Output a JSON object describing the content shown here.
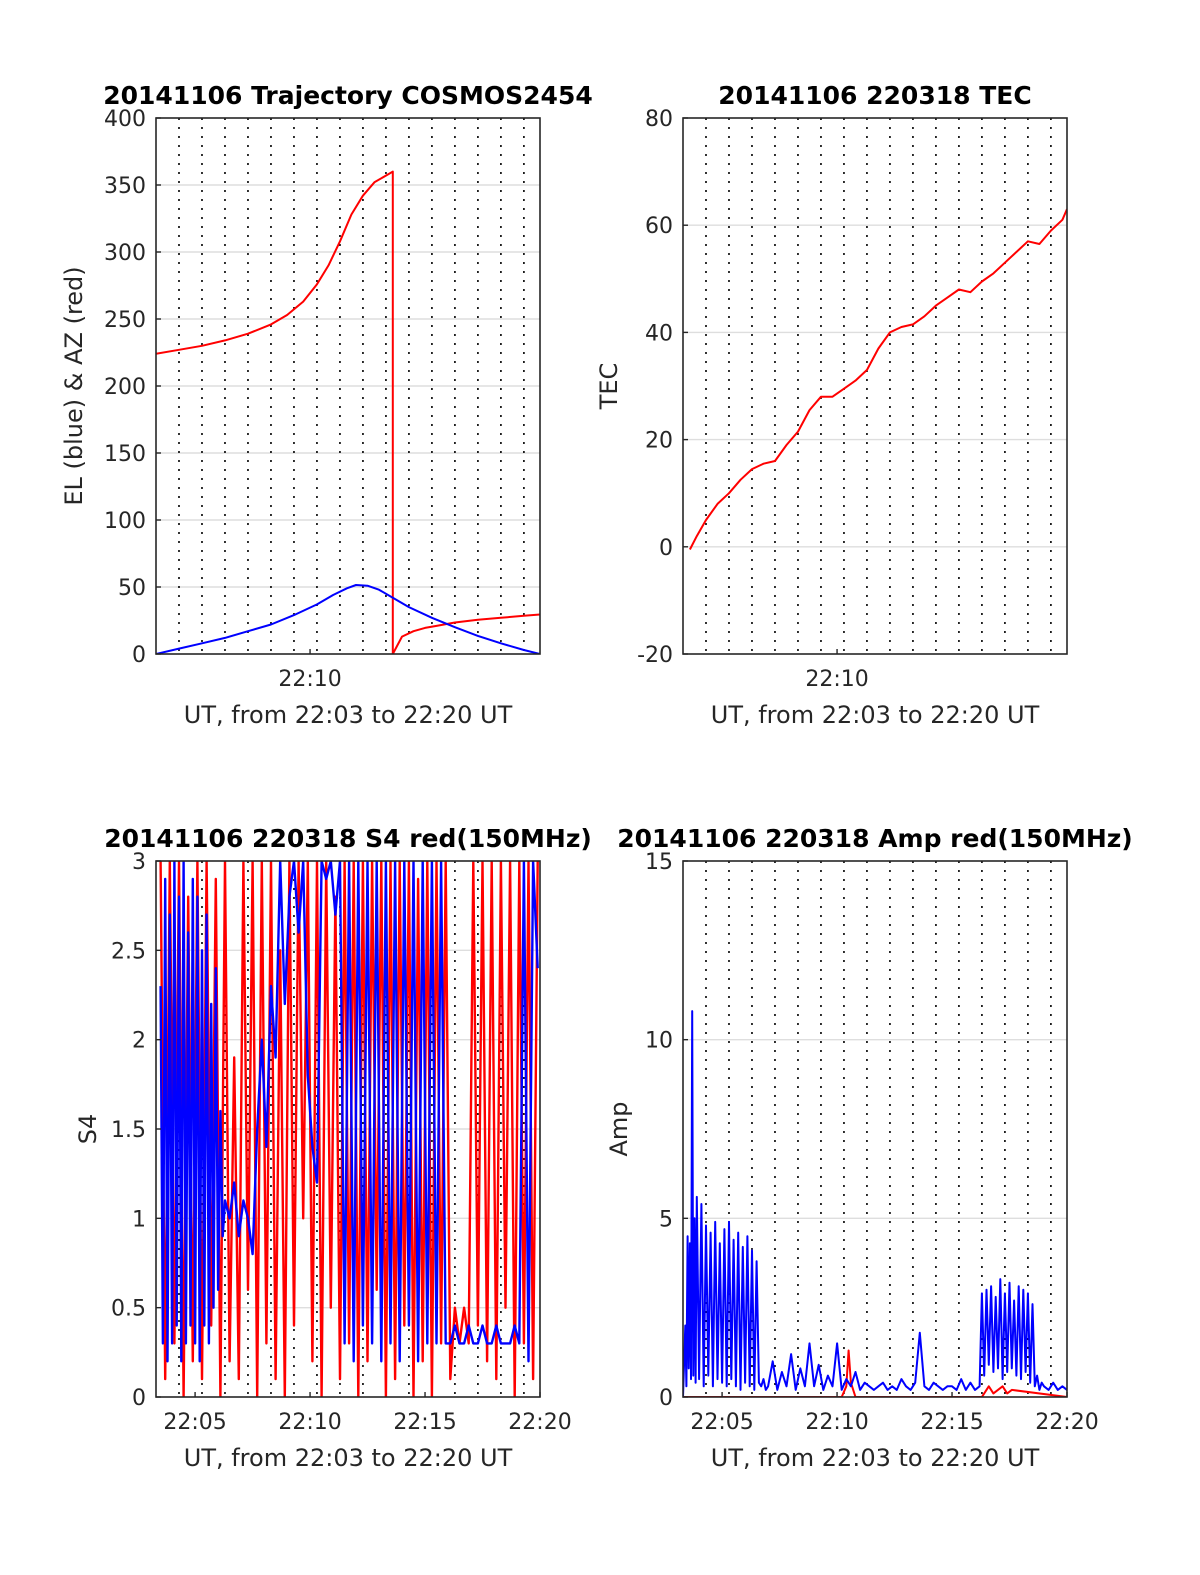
{
  "chart_data": [
    {
      "id": "trajectory",
      "type": "line",
      "title": "20141106 Trajectory COSMOS2454",
      "xlabel": "UT, from 22:03 to 22:20 UT",
      "ylabel": "EL (blue) & AZ (red)",
      "xlim": [
        3.3,
        20.0
      ],
      "ylim": [
        0,
        400
      ],
      "yticks": [
        0,
        50,
        100,
        150,
        200,
        250,
        300,
        350,
        400
      ],
      "xticks": [
        {
          "value": 10,
          "label": "22:10"
        }
      ],
      "vgrid_minutes": [
        3.3,
        4.3,
        5.3,
        6.3,
        7.3,
        8.3,
        9.3,
        10.3,
        11.3,
        12.3,
        13.3,
        14.3,
        15.3,
        16.3,
        17.3,
        18.3,
        19.3,
        20.0
      ],
      "grid": true,
      "series": [
        {
          "color": "#ff0000",
          "x": [
            3.3,
            4.3,
            5.3,
            6.3,
            7.3,
            8.3,
            9.0,
            9.7,
            10.3,
            10.8,
            11.3,
            11.8,
            12.3,
            12.8,
            13.3,
            13.6,
            13.6,
            14.0,
            14.5,
            15.0,
            15.5,
            16.3,
            17.3,
            18.3,
            19.3,
            20.0
          ],
          "y": [
            224,
            227,
            230,
            234,
            239,
            246,
            253,
            263,
            276,
            290,
            308,
            328,
            342,
            352,
            357,
            360,
            0,
            13,
            17,
            19.5,
            21,
            23.5,
            25.5,
            27,
            28.5,
            29.5
          ]
        },
        {
          "color": "#0000ff",
          "x": [
            3.3,
            4.3,
            5.3,
            6.3,
            7.3,
            8.3,
            9.3,
            10.3,
            11.0,
            11.6,
            12.0,
            12.5,
            13.0,
            13.6,
            14.3,
            15.3,
            16.3,
            17.3,
            18.3,
            19.3,
            20.0
          ],
          "y": [
            0,
            4,
            8,
            12,
            17,
            22,
            29,
            37,
            44,
            49,
            51.5,
            51,
            48,
            42,
            35,
            27,
            20,
            13.5,
            8,
            3,
            0
          ]
        }
      ]
    },
    {
      "id": "tec",
      "type": "line",
      "title": "20141106 220318 TEC",
      "xlabel": "UT, from 22:03 to 22:20 UT",
      "ylabel": "TEC",
      "xlim": [
        3.3,
        20.0
      ],
      "ylim": [
        -20,
        80
      ],
      "yticks": [
        -20,
        0,
        20,
        40,
        60,
        80
      ],
      "xticks": [
        {
          "value": 10,
          "label": "22:10"
        }
      ],
      "vgrid_minutes": [
        3.3,
        4.3,
        5.3,
        6.3,
        7.3,
        8.3,
        9.3,
        10.3,
        11.3,
        12.3,
        13.3,
        14.3,
        15.3,
        16.3,
        17.3,
        18.3,
        19.3,
        20.0
      ],
      "grid": true,
      "series": [
        {
          "color": "#ff0000",
          "x": [
            3.6,
            3.9,
            4.3,
            4.8,
            5.3,
            5.8,
            6.3,
            6.8,
            7.3,
            7.8,
            8.3,
            8.8,
            9.3,
            9.8,
            10.3,
            10.8,
            11.3,
            11.8,
            12.3,
            12.8,
            13.3,
            13.8,
            14.3,
            14.8,
            15.3,
            15.8,
            16.3,
            16.8,
            17.3,
            17.8,
            18.3,
            18.8,
            19.3,
            19.8,
            20.0
          ],
          "y": [
            -0.5,
            2,
            5,
            8,
            10,
            12.5,
            14.5,
            15.5,
            16,
            19,
            21.5,
            25.5,
            28,
            28,
            29.5,
            31,
            33,
            37,
            40,
            41,
            41.5,
            43,
            45,
            46.5,
            48,
            47.5,
            49.5,
            51,
            53,
            55,
            57,
            56.5,
            59,
            61,
            63
          ]
        }
      ]
    },
    {
      "id": "s4",
      "type": "line",
      "title": "20141106 220318 S4 red(150MHz)",
      "xlabel": "UT, from 22:03 to 22:20 UT",
      "ylabel": "S4",
      "xlim": [
        3.3,
        20.0
      ],
      "ylim": [
        0,
        3
      ],
      "yticks": [
        0,
        0.5,
        1,
        1.5,
        2,
        2.5,
        3
      ],
      "xticks": [
        {
          "value": 5,
          "label": "22:05"
        },
        {
          "value": 10,
          "label": "22:10"
        },
        {
          "value": 15,
          "label": "22:15"
        },
        {
          "value": 20,
          "label": "22:20"
        }
      ],
      "vgrid_minutes": [
        3.3,
        4.3,
        5.3,
        6.3,
        7.3,
        8.3,
        9.3,
        10.3,
        11.3,
        12.3,
        13.3,
        14.3,
        15.3,
        16.3,
        17.3,
        18.3,
        19.3,
        20.0
      ],
      "grid": true,
      "series": [
        {
          "color": "#ff0000",
          "x": [
            3.5,
            3.7,
            3.9,
            4.1,
            4.3,
            4.5,
            4.7,
            4.9,
            5.1,
            5.3,
            5.5,
            5.7,
            5.9,
            6.1,
            6.3,
            6.5,
            6.7,
            6.9,
            7.1,
            7.3,
            7.5,
            7.7,
            7.9,
            8.1,
            8.3,
            8.5,
            8.7,
            8.9,
            9.1,
            9.3,
            9.5,
            9.7,
            9.9,
            10.1,
            10.3,
            10.5,
            10.7,
            10.9,
            11.1,
            11.3,
            11.5,
            11.7,
            11.9,
            12.1,
            12.3,
            12.5,
            12.7,
            12.9,
            13.1,
            13.3,
            13.5,
            13.7,
            13.9,
            14.1,
            14.3,
            14.5,
            14.7,
            14.9,
            15.1,
            15.3,
            15.5,
            15.7,
            15.9,
            16.1,
            16.3,
            16.5,
            16.7,
            16.9,
            17.1,
            17.3,
            17.5,
            17.7,
            17.9,
            18.1,
            18.3,
            18.5,
            18.7,
            18.9,
            19.1,
            19.3,
            19.5,
            19.7,
            19.9
          ],
          "y": [
            3,
            0.1,
            3,
            0.3,
            3,
            0,
            2.8,
            0.2,
            3,
            0.1,
            3,
            0.4,
            2.9,
            0,
            3,
            0.2,
            1.9,
            0.1,
            3,
            0.6,
            3,
            0,
            3,
            0.3,
            3,
            0.1,
            2.5,
            0,
            3,
            0.4,
            3,
            1.0,
            3,
            0.2,
            3,
            0,
            3,
            0.5,
            2.8,
            0.1,
            3,
            0.3,
            3,
            0,
            3,
            0.2,
            3,
            0.6,
            3,
            0,
            3,
            0.1,
            3,
            0.4,
            3,
            0,
            2.9,
            0.2,
            3,
            0,
            3,
            0.3,
            3,
            0.1,
            0.5,
            0.3,
            0.5,
            0.3,
            3,
            0.4,
            3,
            0.2,
            3,
            0.1,
            3,
            0.5,
            3,
            0,
            3,
            0.3,
            3,
            0.1,
            3
          ]
        },
        {
          "color": "#0000ff",
          "x": [
            3.5,
            3.6,
            3.7,
            3.8,
            3.9,
            4.0,
            4.1,
            4.2,
            4.3,
            4.4,
            4.5,
            4.6,
            4.7,
            4.8,
            4.9,
            5.0,
            5.1,
            5.2,
            5.3,
            5.4,
            5.5,
            5.6,
            5.7,
            5.8,
            5.9,
            6.0,
            6.1,
            6.2,
            6.3,
            6.5,
            6.7,
            6.9,
            7.1,
            7.3,
            7.5,
            7.7,
            7.9,
            8.1,
            8.3,
            8.5,
            8.7,
            8.9,
            9.1,
            9.3,
            9.5,
            9.7,
            9.9,
            10.1,
            10.3,
            10.5,
            10.7,
            10.9,
            11.1,
            11.3,
            11.5,
            11.7,
            11.9,
            12.1,
            12.3,
            12.5,
            12.7,
            12.9,
            13.1,
            13.3,
            13.5,
            13.7,
            13.9,
            14.1,
            14.3,
            14.5,
            14.7,
            14.9,
            15.1,
            15.3,
            15.5,
            15.7,
            15.9,
            16.1,
            16.3,
            16.5,
            16.7,
            16.9,
            17.1,
            17.3,
            17.5,
            17.7,
            17.9,
            18.1,
            18.3,
            18.5,
            18.7,
            18.9,
            19.1,
            19.3,
            19.5,
            19.7,
            19.9
          ],
          "y": [
            2.3,
            0.3,
            2.9,
            0.2,
            2.7,
            0.3,
            3,
            0.4,
            2.8,
            0.2,
            3,
            0.3,
            2.6,
            0.4,
            2.9,
            0.3,
            2.8,
            0.2,
            2.5,
            0.4,
            2.7,
            0.3,
            2.2,
            0.5,
            2.4,
            0.6,
            1.6,
            0.9,
            1.1,
            1.0,
            1.2,
            0.9,
            1.1,
            1.0,
            0.8,
            1.5,
            2.0,
            1.4,
            2.3,
            1.9,
            3,
            2.2,
            2.8,
            3,
            2.6,
            3,
            1.8,
            1.4,
            1.2,
            3,
            2.9,
            3,
            2.7,
            3,
            0.3,
            3,
            0.2,
            3,
            0.4,
            3,
            0.3,
            3,
            0.2,
            3,
            0.3,
            3,
            0.2,
            3,
            0.4,
            3,
            0.2,
            3,
            0.3,
            3,
            0.3,
            3,
            0.3,
            0.3,
            0.4,
            0.3,
            0.3,
            0.4,
            0.3,
            0.3,
            0.4,
            0.3,
            0.3,
            0.4,
            0.3,
            0.3,
            0.3,
            0.4,
            0.3,
            3,
            0.2,
            3,
            2.4
          ]
        }
      ]
    },
    {
      "id": "amp",
      "type": "line",
      "title": "20141106 220318 Amp red(150MHz)",
      "xlabel": "UT, from 22:03 to 22:20 UT",
      "ylabel": "Amp",
      "xlim": [
        3.3,
        20.0
      ],
      "ylim": [
        0,
        15
      ],
      "yticks": [
        0,
        5,
        10,
        15
      ],
      "xticks": [
        {
          "value": 5,
          "label": "22:05"
        },
        {
          "value": 10,
          "label": "22:10"
        },
        {
          "value": 15,
          "label": "22:15"
        },
        {
          "value": 20,
          "label": "22:20"
        }
      ],
      "vgrid_minutes": [
        3.3,
        4.3,
        5.3,
        6.3,
        7.3,
        8.3,
        9.3,
        10.3,
        11.3,
        12.3,
        13.3,
        14.3,
        15.3,
        16.3,
        17.3,
        18.3,
        19.3,
        20.0
      ],
      "grid": true,
      "series": [
        {
          "color": "#ff0000",
          "x": [
            3.3,
            10.2,
            10.4,
            10.5,
            10.6,
            10.8,
            16.3,
            16.4,
            16.6,
            16.8,
            17.2,
            17.4,
            17.6,
            20.0
          ],
          "y": [
            0,
            0,
            0.3,
            1.3,
            0.4,
            0,
            0,
            0.1,
            0.3,
            0.1,
            0.3,
            0.1,
            0.2,
            0
          ]
        },
        {
          "color": "#0000ff",
          "x": [
            3.3,
            3.4,
            3.45,
            3.5,
            3.55,
            3.6,
            3.65,
            3.7,
            3.75,
            3.8,
            3.85,
            3.9,
            4.0,
            4.1,
            4.2,
            4.3,
            4.4,
            4.5,
            4.6,
            4.7,
            4.8,
            4.9,
            5.0,
            5.1,
            5.2,
            5.3,
            5.4,
            5.5,
            5.6,
            5.7,
            5.8,
            5.9,
            6.0,
            6.1,
            6.2,
            6.3,
            6.4,
            6.5,
            6.6,
            6.7,
            6.8,
            6.9,
            7.0,
            7.2,
            7.4,
            7.6,
            7.8,
            8.0,
            8.2,
            8.4,
            8.6,
            8.8,
            9.0,
            9.2,
            9.4,
            9.6,
            9.8,
            10.0,
            10.2,
            10.4,
            10.6,
            10.8,
            11.0,
            11.2,
            11.4,
            11.6,
            11.8,
            12.0,
            12.2,
            12.4,
            12.6,
            12.8,
            13.0,
            13.2,
            13.4,
            13.6,
            13.8,
            14.0,
            14.2,
            14.4,
            14.6,
            14.8,
            15.0,
            15.2,
            15.4,
            15.6,
            15.8,
            16.0,
            16.2,
            16.3,
            16.4,
            16.5,
            16.6,
            16.7,
            16.8,
            16.9,
            17.0,
            17.1,
            17.2,
            17.3,
            17.4,
            17.5,
            17.6,
            17.7,
            17.8,
            17.9,
            18.0,
            18.1,
            18.2,
            18.3,
            18.4,
            18.5,
            18.6,
            18.7,
            18.8,
            18.9,
            19.0,
            19.2,
            19.4,
            19.6,
            19.8,
            20.0
          ],
          "y": [
            0,
            2.0,
            0.3,
            4.5,
            0.8,
            4.3,
            0.5,
            10.8,
            0.6,
            5.0,
            0.4,
            5.6,
            0.5,
            5.4,
            0.3,
            4.8,
            0.6,
            4.6,
            0.3,
            4.9,
            0.5,
            4.3,
            0.4,
            4.7,
            0.3,
            4.9,
            0.5,
            4.4,
            0.3,
            4.6,
            0.2,
            4.2,
            0.4,
            4.5,
            0.3,
            4.1,
            0.2,
            3.8,
            0.4,
            0.3,
            0.5,
            0.2,
            0.3,
            1.0,
            0.2,
            0.7,
            0.3,
            1.2,
            0.2,
            0.8,
            0.3,
            1.5,
            0.3,
            0.9,
            0.2,
            0.6,
            0.3,
            1.5,
            0.2,
            0.5,
            0.3,
            0.7,
            0.2,
            0.4,
            0.3,
            0.2,
            0.3,
            0.4,
            0.2,
            0.3,
            0.2,
            0.5,
            0.3,
            0.2,
            0.4,
            1.8,
            0.3,
            0.2,
            0.4,
            0.3,
            0.2,
            0.3,
            0.3,
            0.2,
            0.5,
            0.2,
            0.4,
            0.2,
            0.3,
            2.9,
            0.6,
            3.0,
            0.9,
            3.1,
            0.7,
            2.8,
            0.8,
            3.3,
            0.5,
            2.9,
            0.7,
            3.2,
            0.8,
            2.7,
            0.6,
            3.1,
            0.5,
            3.0,
            0.7,
            2.9,
            0.4,
            2.6,
            0.3,
            0.6,
            0.2,
            0.4,
            0.3,
            0.2,
            0.4,
            0.2,
            0.3,
            0.2
          ]
        }
      ]
    }
  ]
}
